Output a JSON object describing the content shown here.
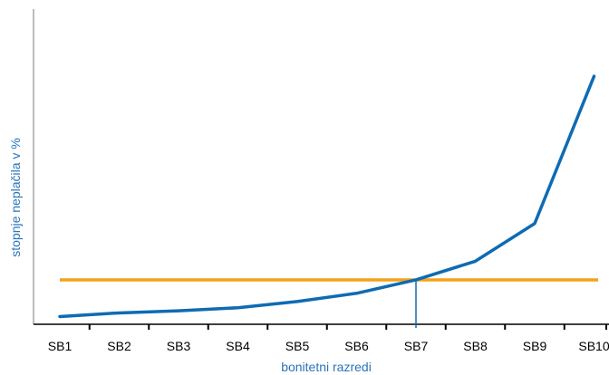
{
  "chart_data": {
    "type": "line",
    "title": "",
    "xlabel": "bonitetni razredi",
    "ylabel": "stopnje neplačila v %",
    "categories": [
      "SB1",
      "SB2",
      "SB3",
      "SB4",
      "SB5",
      "SB6",
      "SB7",
      "SB8",
      "SB9",
      "SB10"
    ],
    "series": [
      {
        "values": [
          0.5,
          1.2,
          1.6,
          2.2,
          3.4,
          5.0,
          7.6,
          11.2,
          18.5,
          47.0
        ]
      }
    ],
    "reference_line": {
      "value": 7.6
    },
    "marker_category": "SB7",
    "ylim": [
      -1,
      60
    ],
    "grid": false,
    "colors": {
      "series": "#0e6bb3",
      "reference": "#f2a21c",
      "axis": "#a6a6a6",
      "label": "#2a74b8"
    }
  }
}
